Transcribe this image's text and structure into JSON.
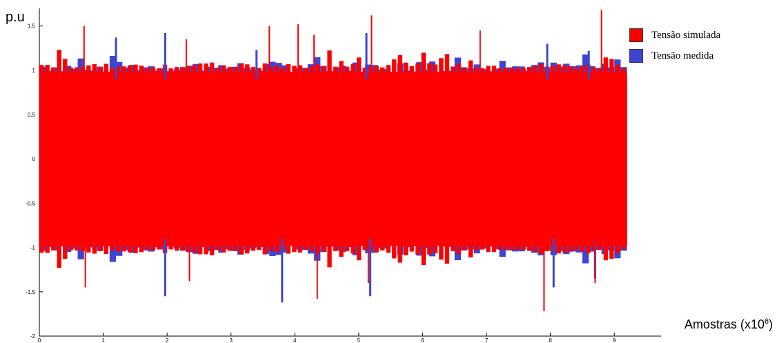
{
  "chart_data": {
    "type": "area",
    "ylabel": "p.u",
    "xlabel_text": "Amostras (x10",
    "xlabel_exp": "6",
    "xlabel_close": ")",
    "xlim": [
      0,
      9.3
    ],
    "ylim": [
      -2,
      1.7
    ],
    "xticks": [
      "0",
      "1",
      "2",
      "3",
      "4",
      "5",
      "6",
      "7",
      "8",
      "9"
    ],
    "yticks": [
      "-2",
      "-1.5",
      "-1",
      "-0.5",
      "0",
      "0.5",
      "1",
      "1.5"
    ],
    "data_extent_x": [
      0,
      9.2
    ],
    "series": [
      {
        "name": "Tensão simulada",
        "color": "#ff0000",
        "envelope_base": 0.98,
        "peaks": [
          [
            0.7,
            1.5
          ],
          [
            2.3,
            1.35
          ],
          [
            3.6,
            1.5
          ],
          [
            4.05,
            1.52
          ],
          [
            4.3,
            1.4
          ],
          [
            5.2,
            1.62
          ],
          [
            6.9,
            1.45
          ],
          [
            8.8,
            1.68
          ]
        ],
        "dips": [
          [
            0.72,
            -1.45
          ],
          [
            2.35,
            -1.38
          ],
          [
            4.35,
            -1.58
          ],
          [
            5.15,
            -1.4
          ],
          [
            7.9,
            -1.72
          ],
          [
            8.7,
            -1.4
          ]
        ]
      },
      {
        "name": "Tensão medida",
        "color": "#3c46d2",
        "peaks": [
          [
            1.2,
            1.37
          ],
          [
            1.97,
            1.42
          ],
          [
            3.4,
            1.23
          ],
          [
            5.12,
            1.42
          ],
          [
            7.95,
            1.3
          ],
          [
            8.6,
            1.22
          ]
        ],
        "dips": [
          [
            1.97,
            -1.55
          ],
          [
            3.8,
            -1.62
          ],
          [
            5.18,
            -1.55
          ],
          [
            8.05,
            -1.45
          ],
          [
            8.7,
            -1.35
          ]
        ]
      }
    ]
  },
  "legend": [
    {
      "label": "Tensão simulada",
      "color": "#ff0000"
    },
    {
      "label": "Tensão medida",
      "color": "#3c46d2"
    }
  ]
}
